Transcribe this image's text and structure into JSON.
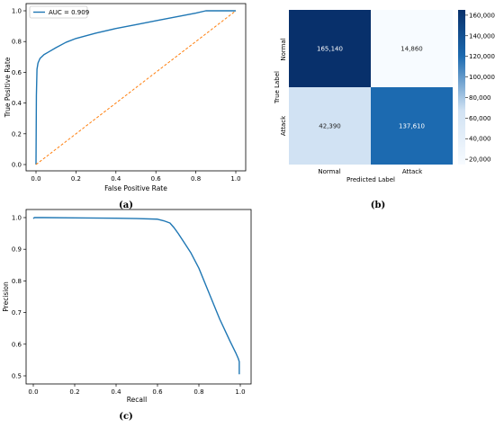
{
  "captions": {
    "a": "(a)",
    "b": "(b)",
    "c": "(c)"
  },
  "colors": {
    "line": "#1f77b4",
    "diag": "#ff7f0e",
    "cm_dark": "#08306b",
    "cm_mid_dark": "#1c6ab0",
    "cm_light": "#d1e2f3",
    "cm_lightest": "#f7fbff"
  },
  "chart_data": [
    {
      "type": "line",
      "title": "",
      "xlabel": "False Positive Rate",
      "ylabel": "True Positive Rate",
      "xlim": [
        0,
        1
      ],
      "ylim": [
        0,
        1
      ],
      "xticks": [
        "0.0",
        "0.2",
        "0.4",
        "0.6",
        "0.8",
        "1.0"
      ],
      "yticks": [
        "0.0",
        "0.2",
        "0.4",
        "0.6",
        "0.8",
        "1.0"
      ],
      "legend": {
        "placement": "top-left",
        "entries": [
          "AUC = 0.909"
        ]
      },
      "series": [
        {
          "name": "AUC = 0.909",
          "x": [
            0,
            0.002,
            0.005,
            0.01,
            0.02,
            0.04,
            0.06,
            0.1,
            0.15,
            0.2,
            0.3,
            0.4,
            0.5,
            0.6,
            0.7,
            0.8,
            0.85,
            0.9,
            1.0
          ],
          "y": [
            0,
            0.45,
            0.62,
            0.66,
            0.69,
            0.715,
            0.73,
            0.76,
            0.795,
            0.82,
            0.855,
            0.885,
            0.91,
            0.935,
            0.96,
            0.985,
            1.0,
            1.0,
            1.0
          ]
        },
        {
          "name": "",
          "style": "dashed",
          "x": [
            0,
            1
          ],
          "y": [
            0,
            1
          ]
        }
      ]
    },
    {
      "type": "heatmap",
      "xlabel": "Predicted Label",
      "ylabel": "True Label",
      "x_categories": [
        "Normal",
        "Attack"
      ],
      "y_categories": [
        "Normal",
        "Attack"
      ],
      "values": [
        [
          165140,
          14860
        ],
        [
          42390,
          137610
        ]
      ],
      "labels": [
        [
          "165,140",
          "14,860"
        ],
        [
          "42,390",
          "137,610"
        ]
      ],
      "colorbar": {
        "range": [
          14860,
          165140
        ],
        "ticks": [
          "20,000",
          "40,000",
          "60,000",
          "80,000",
          "100,000",
          "120,000",
          "140,000",
          "160,000"
        ]
      }
    },
    {
      "type": "line",
      "title": "",
      "xlabel": "Recall",
      "ylabel": "Precision",
      "xlim": [
        0,
        1
      ],
      "ylim": [
        0.5,
        1.0
      ],
      "xticks": [
        "0.0",
        "0.2",
        "0.4",
        "0.6",
        "0.8",
        "1.0"
      ],
      "yticks": [
        "0.5",
        "0.6",
        "0.7",
        "0.8",
        "0.9",
        "1.0"
      ],
      "series": [
        {
          "name": "",
          "x": [
            0.0,
            0.005,
            0.05,
            0.2,
            0.4,
            0.5,
            0.6,
            0.63,
            0.66,
            0.68,
            0.7,
            0.73,
            0.76,
            0.8,
            0.85,
            0.9,
            0.95,
            0.98,
            0.99,
            0.995,
            0.995
          ],
          "y": [
            0.997,
            1.0,
            1.0,
            0.999,
            0.998,
            0.997,
            0.995,
            0.99,
            0.983,
            0.968,
            0.95,
            0.92,
            0.89,
            0.84,
            0.76,
            0.68,
            0.61,
            0.57,
            0.555,
            0.545,
            0.505
          ]
        }
      ]
    }
  ]
}
